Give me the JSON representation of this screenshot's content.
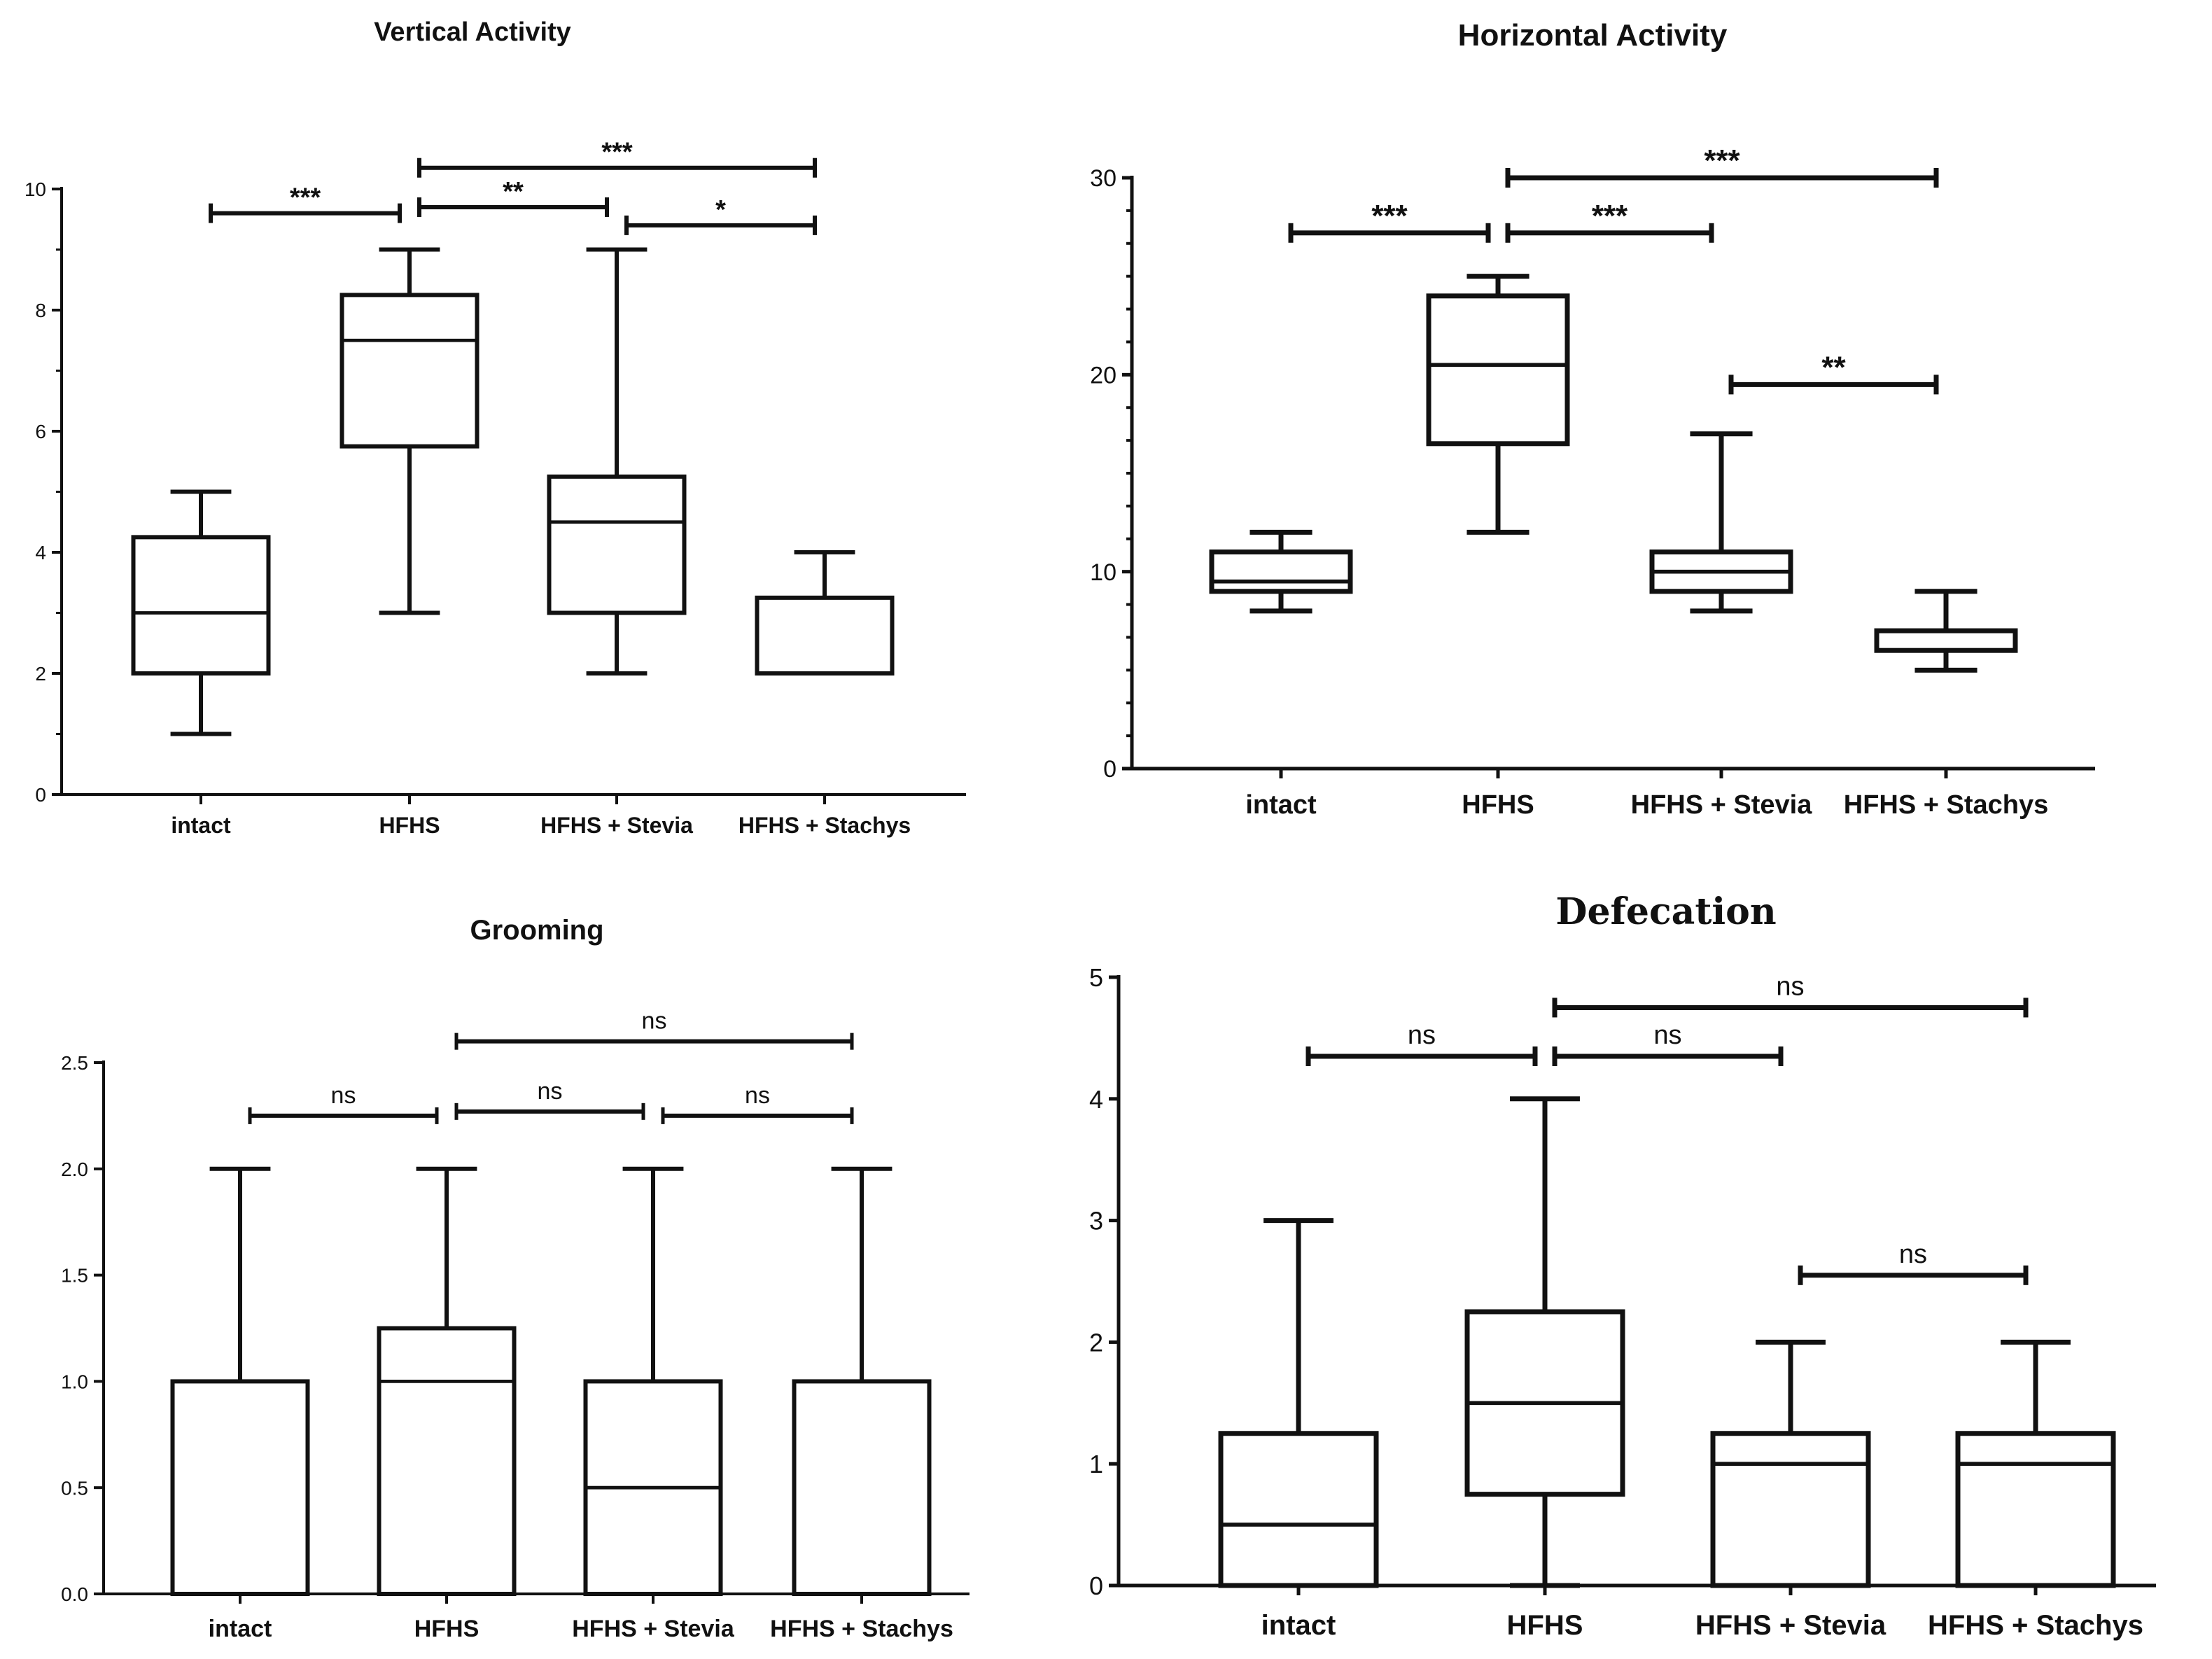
{
  "chart_data": [
    {
      "type": "box",
      "title": "Vertical Activity",
      "xlabel": "",
      "ylabel": "",
      "ylim": [
        0,
        10
      ],
      "yticks": [
        0,
        2,
        4,
        6,
        8,
        10
      ],
      "categories": [
        "intact",
        "HFHS",
        "HFHS + Stevia",
        "HFHS + Stachys"
      ],
      "boxes": [
        {
          "min": 1,
          "q1": 2,
          "median": 3,
          "q3": 4.25,
          "max": 5
        },
        {
          "min": 3,
          "q1": 5.75,
          "median": 7.5,
          "q3": 8.25,
          "max": 9
        },
        {
          "min": 2,
          "q1": 3,
          "median": 4.5,
          "q3": 5.25,
          "max": 9
        },
        {
          "min": 2,
          "q1": 2,
          "median": 2,
          "q3": 3.25,
          "max": 4
        }
      ],
      "comparisons": [
        {
          "from": "intact",
          "to": "HFHS",
          "label": "***",
          "y": 9.6
        },
        {
          "from": "HFHS",
          "to": "HFHS + Stevia",
          "label": "**",
          "y": 9.7
        },
        {
          "from": "HFHS + Stevia",
          "to": "HFHS + Stachys",
          "label": "*",
          "y": 9.4
        },
        {
          "from": "HFHS",
          "to": "HFHS + Stachys",
          "label": "***",
          "y": 10.35
        }
      ]
    },
    {
      "type": "box",
      "title": "Horizontal Activity",
      "xlabel": "",
      "ylabel": "",
      "ylim": [
        0,
        30
      ],
      "yticks": [
        0,
        10,
        20,
        30
      ],
      "categories": [
        "intact",
        "HFHS",
        "HFHS + Stevia",
        "HFHS + Stachys"
      ],
      "boxes": [
        {
          "min": 8,
          "q1": 9,
          "median": 9.5,
          "q3": 11,
          "max": 12
        },
        {
          "min": 12,
          "q1": 16.5,
          "median": 20.5,
          "q3": 24,
          "max": 25
        },
        {
          "min": 8,
          "q1": 9,
          "median": 10,
          "q3": 11,
          "max": 17
        },
        {
          "min": 5,
          "q1": 6,
          "median": 6,
          "q3": 7,
          "max": 9
        }
      ],
      "comparisons": [
        {
          "from": "intact",
          "to": "HFHS",
          "label": "***",
          "y": 27.2
        },
        {
          "from": "HFHS",
          "to": "HFHS + Stevia",
          "label": "***",
          "y": 27.2
        },
        {
          "from": "HFHS",
          "to": "HFHS + Stachys",
          "label": "***",
          "y": 30
        },
        {
          "from": "HFHS + Stevia",
          "to": "HFHS + Stachys",
          "label": "**",
          "y": 19.5
        }
      ]
    },
    {
      "type": "box",
      "title": "Grooming",
      "xlabel": "",
      "ylabel": "",
      "ylim": [
        0,
        2.5
      ],
      "yticks": [
        "0.0",
        "0.5",
        "1.0",
        "1.5",
        "2.0",
        "2.5"
      ],
      "categories": [
        "intact",
        "HFHS",
        "HFHS + Stevia",
        "HFHS + Stachys"
      ],
      "boxes": [
        {
          "min": 0,
          "q1": 0,
          "median": 0,
          "q3": 1,
          "max": 2
        },
        {
          "min": 0,
          "q1": 0,
          "median": 1,
          "q3": 1.25,
          "max": 2
        },
        {
          "min": 0,
          "q1": 0,
          "median": 0.5,
          "q3": 1,
          "max": 2
        },
        {
          "min": 0,
          "q1": 0,
          "median": 1,
          "q3": 1,
          "max": 2
        }
      ],
      "comparisons": [
        {
          "from": "intact",
          "to": "HFHS",
          "label": "ns",
          "y": 2.25
        },
        {
          "from": "HFHS",
          "to": "HFHS + Stevia",
          "label": "ns",
          "y": 2.27
        },
        {
          "from": "HFHS + Stevia",
          "to": "HFHS + Stachys",
          "label": "ns",
          "y": 2.25
        },
        {
          "from": "HFHS",
          "to": "HFHS + Stachys",
          "label": "ns",
          "y": 2.6
        }
      ]
    },
    {
      "type": "box",
      "title": "Defecation",
      "xlabel": "",
      "ylabel": "",
      "ylim": [
        0,
        5
      ],
      "yticks": [
        0,
        1,
        2,
        3,
        4,
        5
      ],
      "categories": [
        "intact",
        "HFHS",
        "HFHS + Stevia",
        "HFHS + Stachys"
      ],
      "boxes": [
        {
          "min": 0,
          "q1": 0,
          "median": 0.5,
          "q3": 1.25,
          "max": 3
        },
        {
          "min": 0,
          "q1": 0.75,
          "median": 1.5,
          "q3": 2.25,
          "max": 4
        },
        {
          "min": 0,
          "q1": 0,
          "median": 1,
          "q3": 1.25,
          "max": 2
        },
        {
          "min": 0,
          "q1": 0,
          "median": 1,
          "q3": 1.25,
          "max": 2
        }
      ],
      "comparisons": [
        {
          "from": "intact",
          "to": "HFHS",
          "label": "ns",
          "y": 4.35
        },
        {
          "from": "HFHS",
          "to": "HFHS + Stevia",
          "label": "ns",
          "y": 4.35
        },
        {
          "from": "HFHS",
          "to": "HFHS + Stachys",
          "label": "ns",
          "y": 4.75
        },
        {
          "from": "HFHS + Stevia",
          "to": "HFHS + Stachys",
          "label": "ns",
          "y": 2.55
        }
      ]
    }
  ]
}
